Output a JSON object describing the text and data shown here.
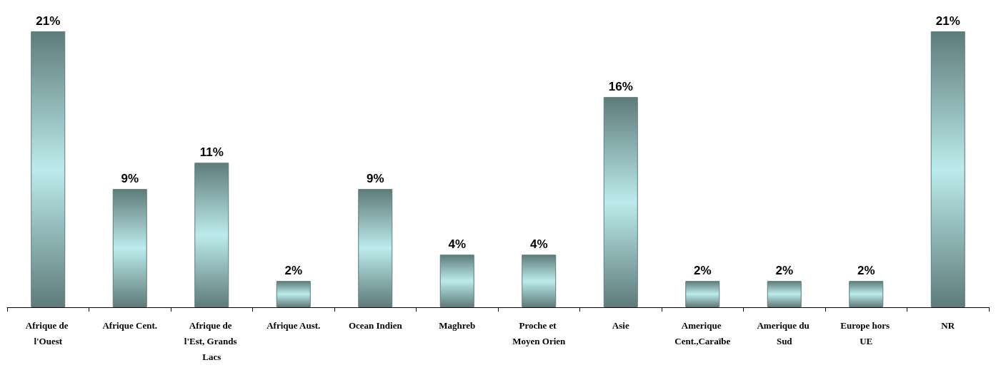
{
  "chart_data": {
    "type": "bar",
    "categories": [
      "Afrique de l'Ouest",
      "Afrique Cent.",
      "Afrique de l'Est, Grands Lacs",
      "Afrique Aust.",
      "Ocean Indien",
      "Maghreb",
      "Proche et Moyen Orien",
      "Asie",
      "Amerique Cent.,Caraïbe",
      "Amerique du Sud",
      "Europe hors UE",
      "NR"
    ],
    "values": [
      21,
      9,
      11,
      2,
      9,
      4,
      4,
      16,
      2,
      2,
      2,
      21
    ],
    "value_labels": [
      "21%",
      "9%",
      "11%",
      "2%",
      "9%",
      "4%",
      "4%",
      "16%",
      "2%",
      "2%",
      "2%",
      "21%"
    ],
    "color": "#5f7b7b"
  }
}
